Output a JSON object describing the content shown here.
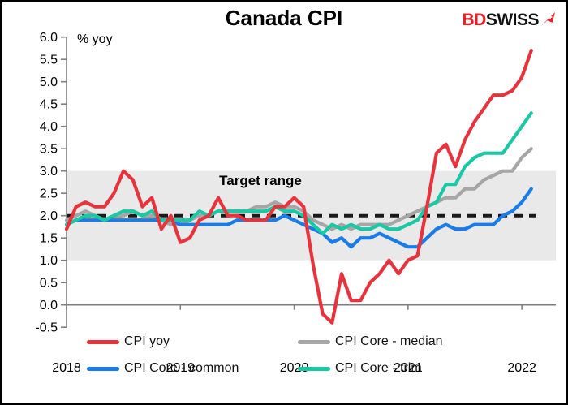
{
  "header": {
    "title": "Canada CPI",
    "logo": {
      "part1": "BD",
      "part2": "SWISS",
      "part1_color": "#ed1c24",
      "part2_color": "#121212",
      "icon": "swiss-arrow-icon"
    }
  },
  "chart_data": {
    "type": "line",
    "title": "Canada CPI",
    "unit_label": "% yoy",
    "annotation": "Target range",
    "x_start": "2018-01",
    "x_end": "2022-02",
    "frequency": "monthly",
    "x_tick_labels": [
      "2018",
      "2019",
      "2020",
      "2021",
      "2022"
    ],
    "x_tick_month_index": [
      0,
      12,
      24,
      36,
      48
    ],
    "y_tick_labels": [
      "6.0",
      "5.5",
      "5.0",
      "4.5",
      "4.0",
      "3.5",
      "3.0",
      "2.5",
      "2.0",
      "1.5",
      "1.0",
      "0.5",
      "0.0",
      "-0.5"
    ],
    "ylim": [
      -0.5,
      6.0
    ],
    "grid": false,
    "target_band": {
      "from": 1.0,
      "to": 3.0,
      "midline": 2.0,
      "fill": "#e9e9e9",
      "midline_color": "#1a1a1a"
    },
    "axis_color": "#7f7f7f",
    "series": [
      {
        "name": "CPI Core - median",
        "color": "#a6a6a6",
        "values": [
          1.9,
          2.0,
          2.1,
          2.0,
          1.9,
          2.0,
          2.0,
          2.1,
          2.0,
          2.0,
          1.9,
          1.8,
          1.8,
          1.9,
          2.0,
          2.0,
          2.1,
          2.1,
          2.1,
          2.1,
          2.2,
          2.2,
          2.3,
          2.2,
          2.2,
          2.1,
          1.9,
          1.8,
          1.7,
          1.8,
          1.7,
          1.8,
          1.8,
          1.8,
          1.8,
          1.9,
          2.0,
          2.1,
          2.2,
          2.3,
          2.4,
          2.4,
          2.6,
          2.6,
          2.8,
          2.9,
          3.0,
          3.0,
          3.3,
          3.5
        ]
      },
      {
        "name": "CPI Core - common",
        "color": "#1a7ce8",
        "values": [
          1.8,
          1.9,
          1.9,
          1.9,
          1.9,
          1.9,
          1.9,
          1.9,
          1.9,
          1.9,
          1.9,
          1.9,
          1.8,
          1.8,
          1.8,
          1.8,
          1.8,
          1.8,
          1.9,
          1.9,
          1.9,
          1.9,
          1.9,
          2.0,
          1.9,
          1.8,
          1.7,
          1.6,
          1.4,
          1.5,
          1.3,
          1.5,
          1.5,
          1.6,
          1.5,
          1.4,
          1.3,
          1.3,
          1.5,
          1.7,
          1.8,
          1.7,
          1.7,
          1.8,
          1.8,
          1.8,
          2.0,
          2.1,
          2.3,
          2.6
        ]
      },
      {
        "name": "CPI Core - trim",
        "color": "#19c8a5",
        "values": [
          1.8,
          1.9,
          2.0,
          2.0,
          1.9,
          2.0,
          2.1,
          2.1,
          2.0,
          2.1,
          1.9,
          1.9,
          1.9,
          1.9,
          2.1,
          2.0,
          2.1,
          2.1,
          2.1,
          2.1,
          2.1,
          2.1,
          2.2,
          2.1,
          2.1,
          2.0,
          1.8,
          1.6,
          1.8,
          1.7,
          1.8,
          1.7,
          1.7,
          1.8,
          1.7,
          1.7,
          1.8,
          1.9,
          2.2,
          2.3,
          2.7,
          2.7,
          3.1,
          3.3,
          3.4,
          3.4,
          3.4,
          3.7,
          4.0,
          4.3
        ]
      },
      {
        "name": "CPI yoy",
        "color": "#e8323c",
        "values": [
          1.7,
          2.2,
          2.3,
          2.2,
          2.2,
          2.5,
          3.0,
          2.8,
          2.2,
          2.4,
          1.7,
          2.0,
          1.4,
          1.5,
          1.9,
          2.0,
          2.4,
          2.0,
          2.0,
          1.9,
          1.9,
          1.9,
          2.2,
          2.2,
          2.4,
          2.2,
          0.9,
          -0.2,
          -0.4,
          0.7,
          0.1,
          0.1,
          0.5,
          0.7,
          1.0,
          0.7,
          1.0,
          1.1,
          2.2,
          3.4,
          3.6,
          3.1,
          3.7,
          4.1,
          4.4,
          4.7,
          4.7,
          4.8,
          5.1,
          5.7
        ]
      }
    ],
    "legend": [
      {
        "label": "CPI yoy",
        "color": "#e8323c"
      },
      {
        "label": "CPI Core - median",
        "color": "#a6a6a6"
      },
      {
        "label": "CPI Core - common",
        "color": "#1a7ce8"
      },
      {
        "label": "CPI Core - trim",
        "color": "#19c8a5"
      }
    ],
    "legend_position": "bottom"
  }
}
